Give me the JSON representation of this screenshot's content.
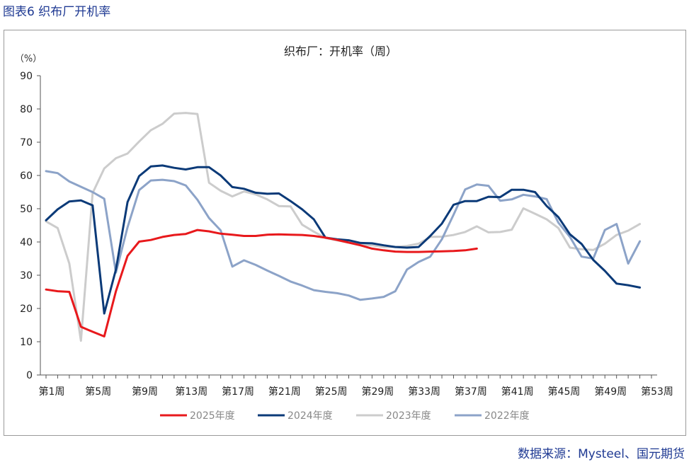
{
  "figure_title": "图表6  织布厂开机率",
  "source": "数据来源：Mysteel、国元期货",
  "chart_data": {
    "type": "line",
    "title": "织布厂：开机率（周）",
    "yunit": "（%）",
    "ylim": [
      0,
      90
    ],
    "yticks": [
      0,
      10,
      20,
      30,
      40,
      50,
      60,
      70,
      80,
      90
    ],
    "xlabels": [
      "第1周",
      "第5周",
      "第9周",
      "第13周",
      "第17周",
      "第21周",
      "第25周",
      "第29周",
      "第33周",
      "第37周",
      "第41周",
      "第45周",
      "第49周",
      "第53周"
    ],
    "grid": false,
    "legend": "bottom",
    "series": [
      {
        "name": "2025年度",
        "color": "#e8191c",
        "weeks": [
          1,
          2,
          3,
          4,
          5,
          6,
          7,
          8,
          9,
          10,
          11,
          12,
          13,
          14,
          15,
          16,
          17,
          18,
          19,
          20,
          21,
          22,
          23,
          24,
          25,
          26,
          27,
          28,
          29,
          30,
          31,
          32,
          33,
          34,
          35,
          36,
          37,
          38
        ],
        "values": [
          25.7,
          25.2,
          25.0,
          14.5,
          13.0,
          11.6,
          25.2,
          35.8,
          40.1,
          40.6,
          41.5,
          42.1,
          42.4,
          43.6,
          43.2,
          42.5,
          42.2,
          41.8,
          41.8,
          42.2,
          42.3,
          42.2,
          42.1,
          41.8,
          41.3,
          40.6,
          39.8,
          39.0,
          38.0,
          37.5,
          37.1,
          37.0,
          37.0,
          37.1,
          37.2,
          37.3,
          37.5,
          38.0
        ]
      },
      {
        "name": "2024年度",
        "color": "#0b3a78",
        "weeks": [
          1,
          2,
          3,
          4,
          5,
          6,
          7,
          8,
          9,
          10,
          11,
          12,
          13,
          14,
          15,
          16,
          17,
          18,
          19,
          20,
          21,
          22,
          23,
          24,
          25,
          26,
          27,
          28,
          29,
          30,
          31,
          32,
          33,
          34,
          35,
          36,
          37,
          38,
          39,
          40,
          41,
          42,
          43,
          44,
          45,
          46,
          47,
          48,
          49,
          50,
          51,
          52
        ],
        "values": [
          46.5,
          49.8,
          52.2,
          52.5,
          51.0,
          18.5,
          31.7,
          52.0,
          59.8,
          62.7,
          63.0,
          62.3,
          61.8,
          62.5,
          62.5,
          60.0,
          56.5,
          56.0,
          54.8,
          54.5,
          54.6,
          52.3,
          49.8,
          46.8,
          41.3,
          40.8,
          40.5,
          39.7,
          39.6,
          39.0,
          38.5,
          38.3,
          38.5,
          41.8,
          45.5,
          51.2,
          52.3,
          52.3,
          53.6,
          53.5,
          55.7,
          55.7,
          55.0,
          50.8,
          47.5,
          42.3,
          39.4,
          34.6,
          31.3,
          27.5,
          27.0,
          26.3
        ]
      },
      {
        "name": "2023年度",
        "color": "#cccccc",
        "weeks": [
          1,
          2,
          3,
          4,
          5,
          6,
          7,
          8,
          9,
          10,
          11,
          12,
          13,
          14,
          15,
          16,
          17,
          18,
          19,
          20,
          21,
          22,
          23,
          24,
          25,
          26,
          27,
          28,
          29,
          30,
          31,
          32,
          33,
          34,
          35,
          36,
          37,
          38,
          39,
          40,
          41,
          42,
          43,
          44,
          45,
          46,
          47,
          48,
          49,
          50,
          51,
          52
        ],
        "values": [
          46.2,
          44.2,
          33.5,
          10.3,
          54.7,
          62.1,
          65.2,
          66.6,
          70.2,
          73.6,
          75.5,
          78.6,
          78.8,
          78.5,
          57.8,
          55.4,
          53.7,
          55.2,
          54.3,
          52.8,
          50.8,
          50.7,
          45.2,
          43.1,
          41.2,
          40.5,
          39.8,
          39.2,
          39.0,
          38.5,
          38.5,
          38.8,
          39.5,
          41.5,
          41.6,
          42.1,
          43.0,
          44.7,
          42.9,
          43.0,
          43.7,
          50.1,
          48.5,
          46.8,
          44.2,
          38.3,
          37.8,
          37.6,
          39.5,
          42.1,
          43.4,
          45.4
        ]
      },
      {
        "name": "2022年度",
        "color": "#8ca3c8",
        "weeks": [
          1,
          2,
          3,
          4,
          5,
          6,
          7,
          8,
          9,
          10,
          11,
          12,
          13,
          14,
          15,
          16,
          17,
          18,
          19,
          20,
          21,
          22,
          23,
          24,
          25,
          26,
          27,
          28,
          29,
          30,
          31,
          32,
          33,
          34,
          35,
          36,
          37,
          38,
          39,
          40,
          41,
          42,
          43,
          44,
          45,
          46,
          47,
          48,
          49,
          50,
          51,
          52
        ],
        "values": [
          61.3,
          60.7,
          58.2,
          56.6,
          55.0,
          53.0,
          30.8,
          44.4,
          55.6,
          58.5,
          58.7,
          58.3,
          57.0,
          52.7,
          47.2,
          43.5,
          32.6,
          34.5,
          33.1,
          31.4,
          29.8,
          28.1,
          26.9,
          25.5,
          25.0,
          24.6,
          23.9,
          22.6,
          23.0,
          23.5,
          25.2,
          31.7,
          34.0,
          35.6,
          40.8,
          48.2,
          55.8,
          57.3,
          56.9,
          52.4,
          52.8,
          54.2,
          53.7,
          52.9,
          45.8,
          41.5,
          35.6,
          35.0,
          43.6,
          45.4,
          33.5,
          40.2
        ]
      }
    ]
  }
}
